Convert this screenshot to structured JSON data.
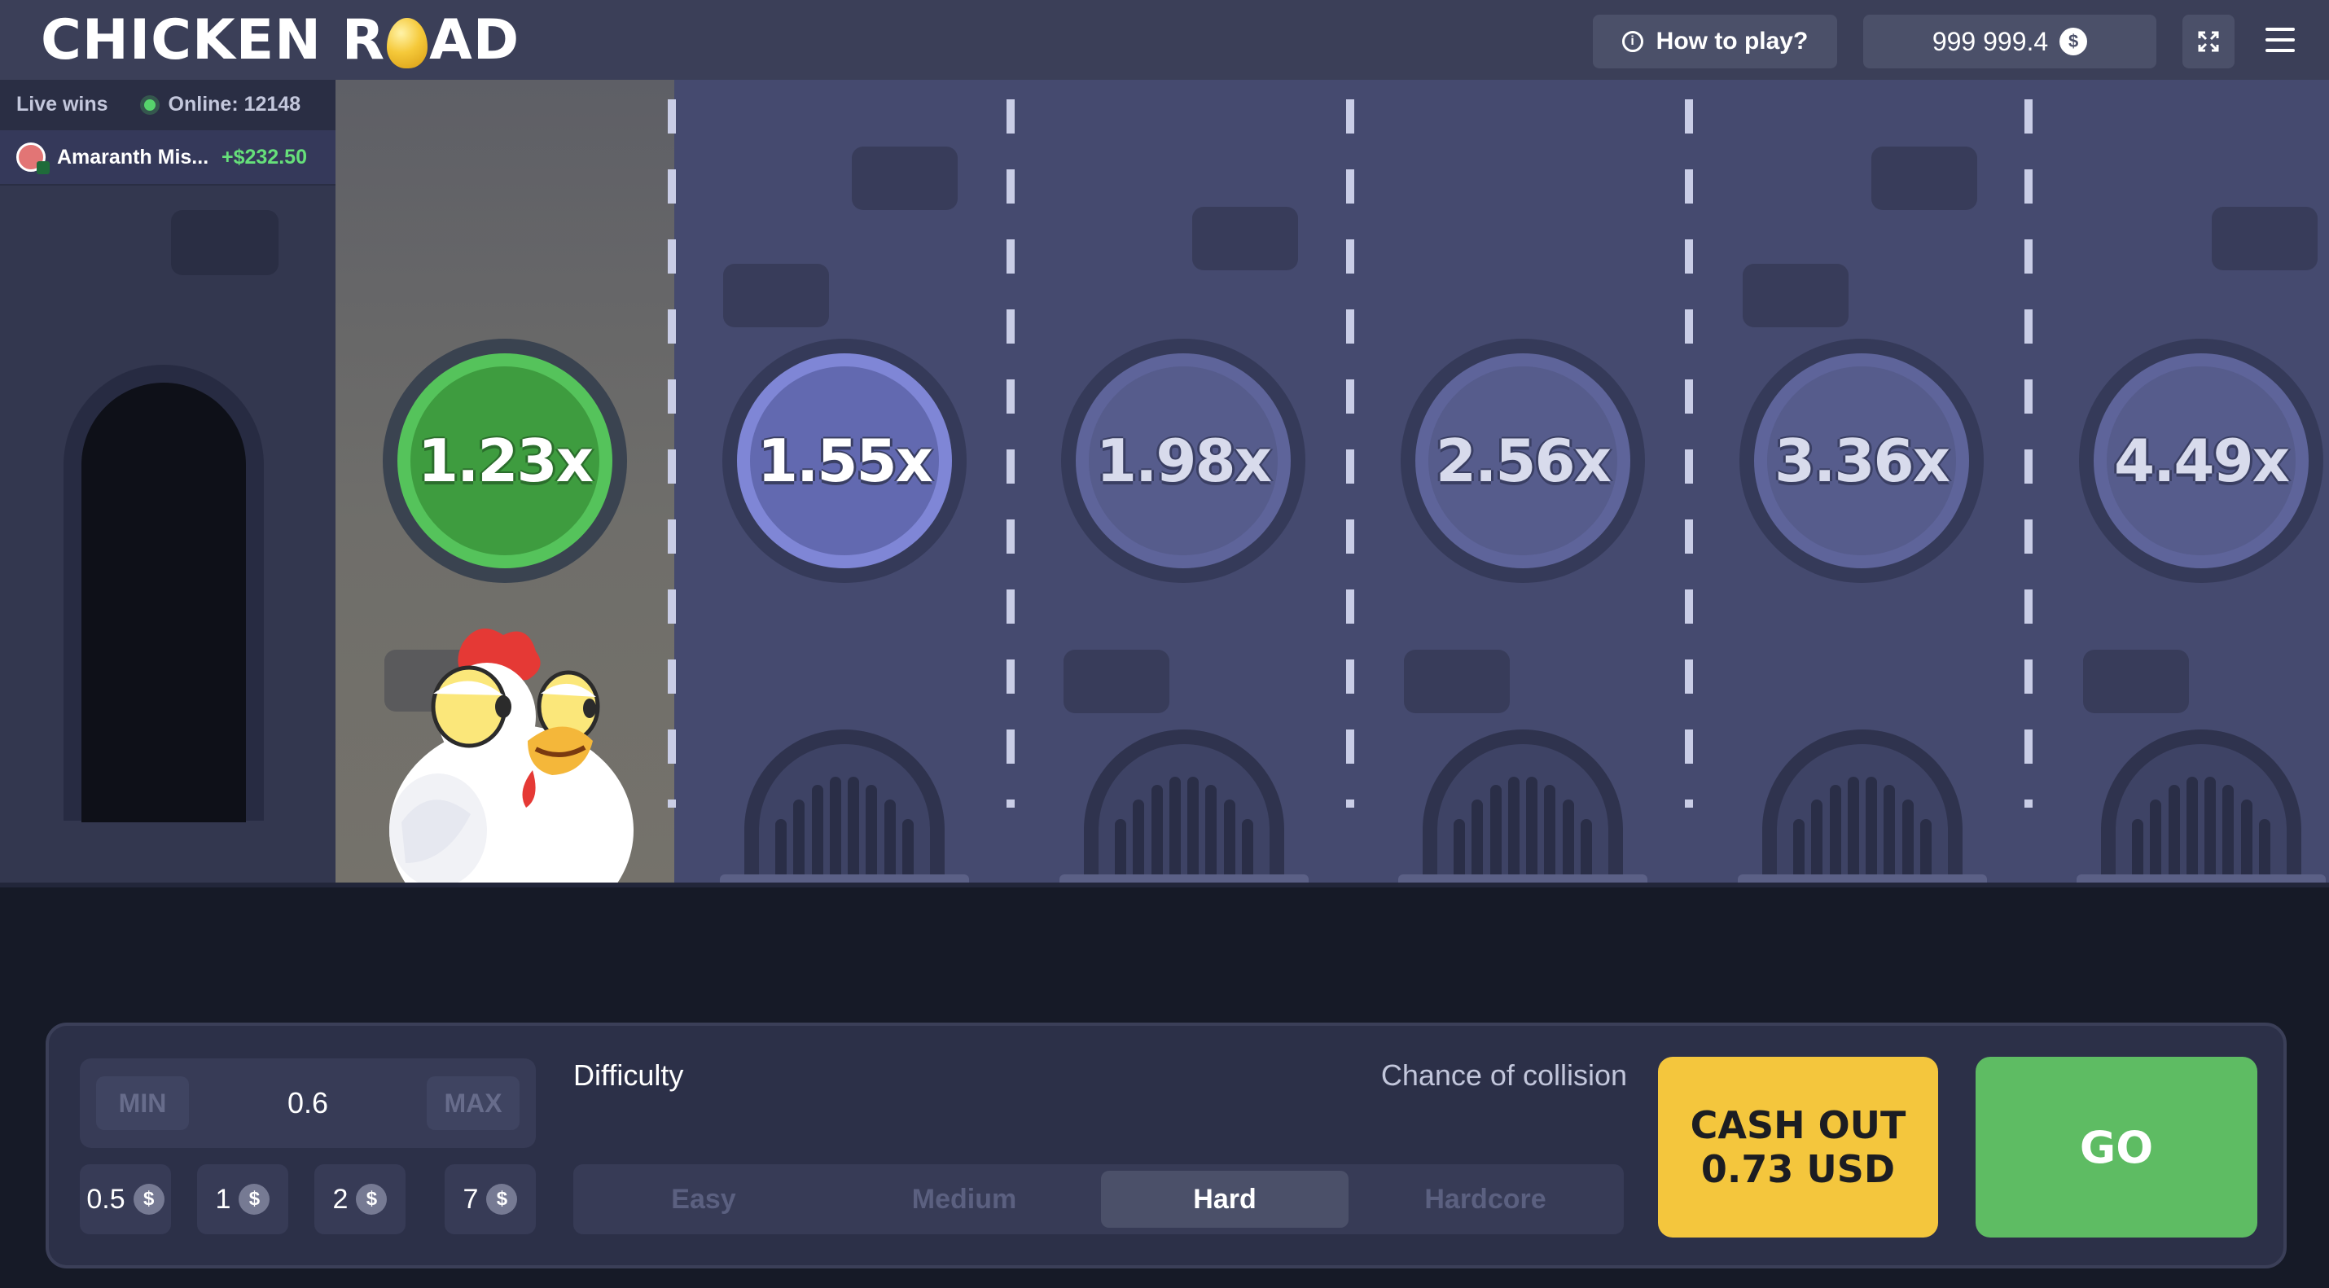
{
  "header": {
    "logo_left": "CHICKEN R",
    "logo_right": "AD",
    "how_to_play": "How to play?",
    "balance": "999 999.4",
    "currency_symbol": "$"
  },
  "live": {
    "title": "Live wins",
    "online": "Online: 12148",
    "wins": [
      {
        "name": "Amaranth Mis...",
        "amount": "+$232.50"
      }
    ]
  },
  "multipliers": [
    "1.23x",
    "1.55x",
    "1.98x",
    "2.56x",
    "3.36x",
    "4.49x"
  ],
  "bet": {
    "min_label": "MIN",
    "max_label": "MAX",
    "amount": "0.6",
    "chips": [
      "0.5",
      "1",
      "2",
      "7"
    ],
    "chip_currency": "$"
  },
  "difficulty": {
    "label": "Difficulty",
    "chance_label": "Chance of collision",
    "options": [
      "Easy",
      "Medium",
      "Hard",
      "Hardcore"
    ],
    "selected": "Hard"
  },
  "actions": {
    "cashout_line1": "CASH OUT",
    "cashout_line2": "0.73 USD",
    "go": "GO"
  },
  "colors": {
    "accent_green": "#5ebc63",
    "cashout_yellow": "#f4c63d",
    "win_green": "#66e07a"
  }
}
